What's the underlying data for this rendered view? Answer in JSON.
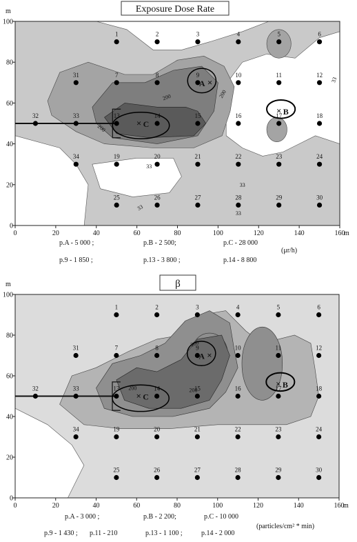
{
  "chart_data": [
    {
      "type": "contour",
      "title": "Exposure Dose Rate",
      "x_unit": "m",
      "y_unit": "m",
      "xlim": [
        0,
        160
      ],
      "ylim": [
        0,
        100
      ],
      "x_ticks": [
        0,
        20,
        40,
        60,
        80,
        100,
        120,
        140,
        160
      ],
      "y_ticks": [
        0,
        20,
        40,
        60,
        80,
        100
      ],
      "points": [
        {
          "label": "1",
          "x": 50,
          "y": 90
        },
        {
          "label": "2",
          "x": 70,
          "y": 90
        },
        {
          "label": "3",
          "x": 90,
          "y": 90
        },
        {
          "label": "4",
          "x": 110,
          "y": 90
        },
        {
          "label": "5",
          "x": 130,
          "y": 90
        },
        {
          "label": "6",
          "x": 150,
          "y": 90
        },
        {
          "label": "31",
          "x": 30,
          "y": 70
        },
        {
          "label": "7",
          "x": 50,
          "y": 70
        },
        {
          "label": "8",
          "x": 70,
          "y": 70
        },
        {
          "label": "9",
          "x": 90,
          "y": 70
        },
        {
          "label": "10",
          "x": 110,
          "y": 70
        },
        {
          "label": "11",
          "x": 130,
          "y": 70
        },
        {
          "label": "12",
          "x": 150,
          "y": 70
        },
        {
          "label": "32",
          "x": 10,
          "y": 50
        },
        {
          "label": "33",
          "x": 30,
          "y": 50
        },
        {
          "label": "13",
          "x": 50,
          "y": 50
        },
        {
          "label": "14",
          "x": 70,
          "y": 50
        },
        {
          "label": "15",
          "x": 90,
          "y": 50
        },
        {
          "label": "16",
          "x": 110,
          "y": 50
        },
        {
          "label": "17",
          "x": 130,
          "y": 50
        },
        {
          "label": "18",
          "x": 150,
          "y": 50
        },
        {
          "label": "34",
          "x": 30,
          "y": 30
        },
        {
          "label": "19",
          "x": 50,
          "y": 30
        },
        {
          "label": "20",
          "x": 70,
          "y": 30
        },
        {
          "label": "21",
          "x": 90,
          "y": 30
        },
        {
          "label": "22",
          "x": 110,
          "y": 30
        },
        {
          "label": "23",
          "x": 130,
          "y": 30
        },
        {
          "label": "24",
          "x": 150,
          "y": 30
        },
        {
          "label": "25",
          "x": 50,
          "y": 10
        },
        {
          "label": "26",
          "x": 70,
          "y": 10
        },
        {
          "label": "27",
          "x": 90,
          "y": 10
        },
        {
          "label": "28",
          "x": 110,
          "y": 10
        },
        {
          "label": "29",
          "x": 130,
          "y": 10
        },
        {
          "label": "30",
          "x": 150,
          "y": 10
        }
      ],
      "markers": [
        {
          "label": "A",
          "x": 96,
          "y": 70
        },
        {
          "label": "B",
          "x": 130,
          "y": 56
        },
        {
          "label": "C",
          "x": 61,
          "y": 50
        }
      ],
      "contour_labels": [
        "200",
        "200",
        "200",
        "33",
        "33",
        "33",
        "33",
        "33"
      ],
      "notes_row1": [
        "p.A - 5 000 ;",
        "p.B - 2 500;",
        "p.C - 28 000"
      ],
      "notes_row2": [
        "p.9 - 1 850 ;",
        "p.13 - 3 800 ;",
        "p.14 - 8 800"
      ],
      "unit": "(μr/h)",
      "colors": {
        "level1": "#c9c9c9",
        "level2": "#a4a4a4",
        "level3": "#7e7e7e",
        "level4": "#5a5a5a"
      }
    },
    {
      "type": "contour",
      "title": "β",
      "x_unit": "m",
      "y_unit": "m",
      "xlim": [
        0,
        160
      ],
      "ylim": [
        0,
        100
      ],
      "x_ticks": [
        0,
        20,
        40,
        60,
        80,
        100,
        120,
        140,
        160
      ],
      "y_ticks": [
        0,
        20,
        40,
        60,
        80,
        100
      ],
      "points": [
        {
          "label": "1",
          "x": 50,
          "y": 90
        },
        {
          "label": "2",
          "x": 70,
          "y": 90
        },
        {
          "label": "3",
          "x": 90,
          "y": 90
        },
        {
          "label": "4",
          "x": 110,
          "y": 90
        },
        {
          "label": "5",
          "x": 130,
          "y": 90
        },
        {
          "label": "6",
          "x": 150,
          "y": 90
        },
        {
          "label": "31",
          "x": 30,
          "y": 70
        },
        {
          "label": "7",
          "x": 50,
          "y": 70
        },
        {
          "label": "8",
          "x": 70,
          "y": 70
        },
        {
          "label": "9",
          "x": 90,
          "y": 70
        },
        {
          "label": "10",
          "x": 110,
          "y": 70
        },
        {
          "label": "11",
          "x": 130,
          "y": 70
        },
        {
          "label": "12",
          "x": 150,
          "y": 70
        },
        {
          "label": "32",
          "x": 10,
          "y": 50
        },
        {
          "label": "33",
          "x": 30,
          "y": 50
        },
        {
          "label": "13",
          "x": 50,
          "y": 50
        },
        {
          "label": "14",
          "x": 70,
          "y": 50
        },
        {
          "label": "15",
          "x": 90,
          "y": 50
        },
        {
          "label": "16",
          "x": 110,
          "y": 50
        },
        {
          "label": "17",
          "x": 130,
          "y": 50
        },
        {
          "label": "18",
          "x": 150,
          "y": 50
        },
        {
          "label": "34",
          "x": 30,
          "y": 30
        },
        {
          "label": "19",
          "x": 50,
          "y": 30
        },
        {
          "label": "20",
          "x": 70,
          "y": 30
        },
        {
          "label": "21",
          "x": 90,
          "y": 30
        },
        {
          "label": "22",
          "x": 110,
          "y": 30
        },
        {
          "label": "23",
          "x": 130,
          "y": 30
        },
        {
          "label": "24",
          "x": 150,
          "y": 30
        },
        {
          "label": "25",
          "x": 50,
          "y": 10
        },
        {
          "label": "26",
          "x": 70,
          "y": 10
        },
        {
          "label": "27",
          "x": 90,
          "y": 10
        },
        {
          "label": "28",
          "x": 110,
          "y": 10
        },
        {
          "label": "29",
          "x": 130,
          "y": 10
        },
        {
          "label": "30",
          "x": 150,
          "y": 10
        }
      ],
      "markers": [
        {
          "label": "A",
          "x": 96,
          "y": 70
        },
        {
          "label": "B",
          "x": 130,
          "y": 56
        },
        {
          "label": "C",
          "x": 61,
          "y": 50
        }
      ],
      "contour_labels": [
        "200",
        "200",
        "200"
      ],
      "notes_row1": [
        "p.A - 3 000 ;",
        "p.B - 2 200;",
        "p.C - 10 000"
      ],
      "notes_row2": [
        "p.9 - 1 430 ;",
        "p.11 - 210",
        "p.13 - 1 100 ;",
        "p.14 - 2 000"
      ],
      "unit": "(particles/cm² * min)",
      "colors": {
        "level1": "#dcdcdc",
        "level2": "#b4b4b4",
        "level3": "#8f8f8f",
        "level4": "#6b6b6b"
      }
    }
  ]
}
